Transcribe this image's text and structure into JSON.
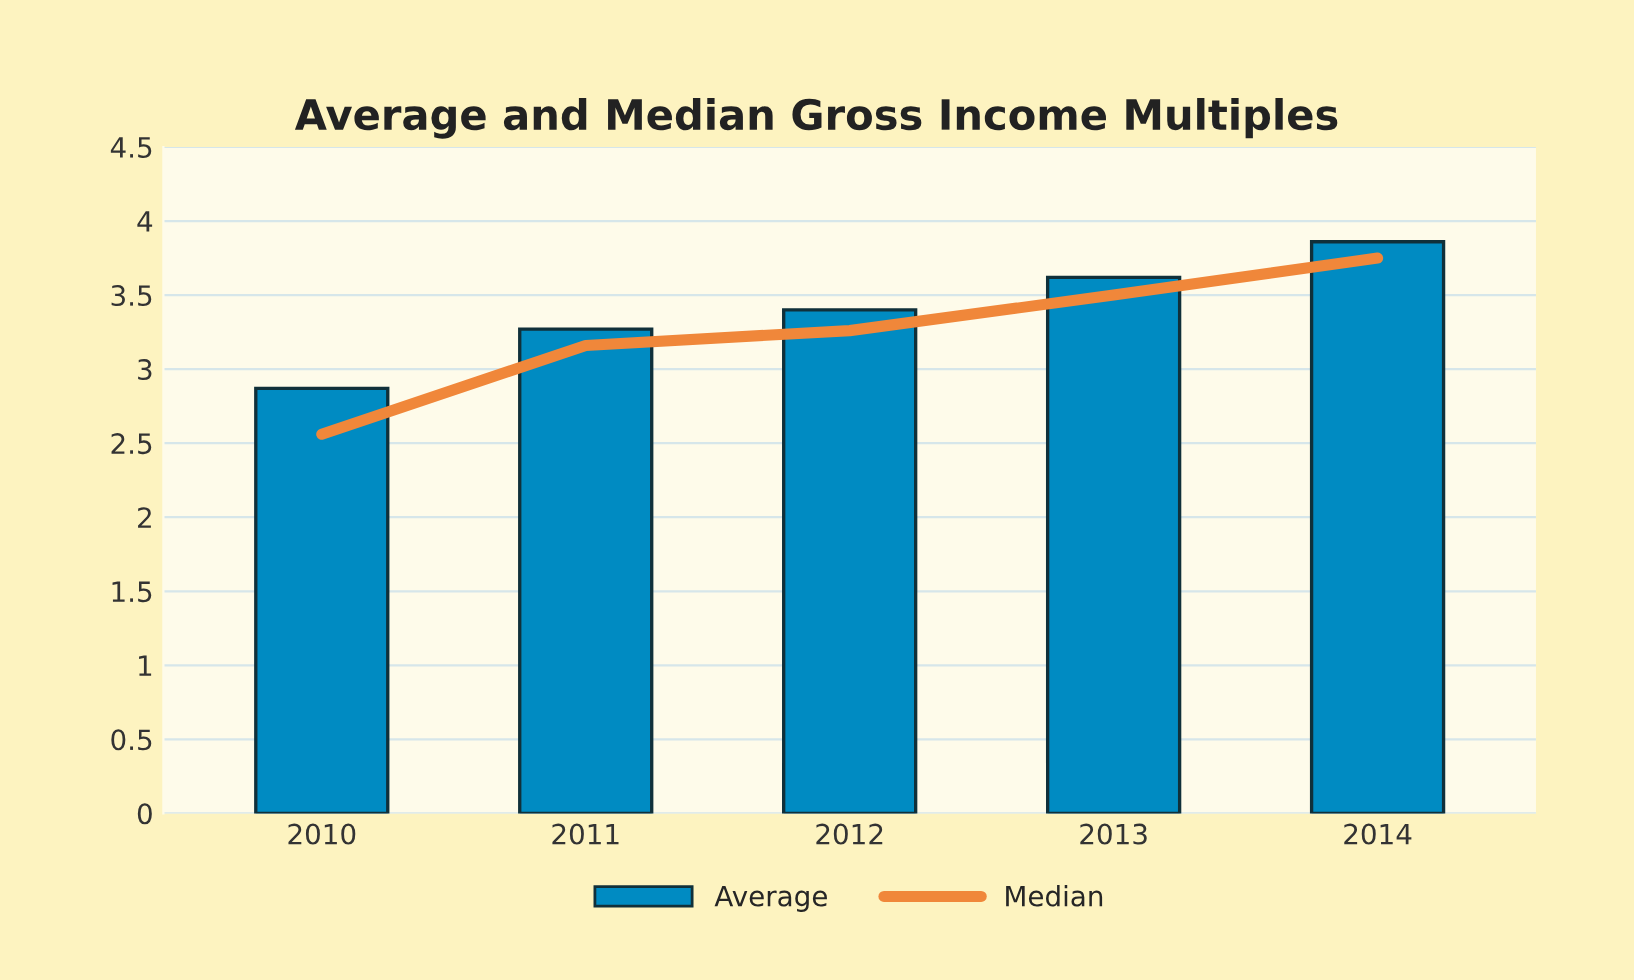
{
  "chart_data": {
    "type": "bar",
    "title": "Average and Median Gross Income Multiples",
    "categories": [
      "2010",
      "2011",
      "2012",
      "2013",
      "2014"
    ],
    "series": [
      {
        "name": "Average",
        "type": "bar",
        "color": "#008bc2",
        "values": [
          2.87,
          3.27,
          3.4,
          3.62,
          3.86
        ]
      },
      {
        "name": "Median",
        "type": "line",
        "color": "#f0873a",
        "values": [
          2.56,
          3.16,
          3.26,
          3.5,
          3.75
        ]
      }
    ],
    "ylim": [
      0,
      4.5
    ],
    "yticks": [
      0,
      0.5,
      1,
      1.5,
      2,
      2.5,
      3,
      3.5,
      4,
      4.5
    ],
    "grid": "y",
    "legend": "bottom"
  }
}
